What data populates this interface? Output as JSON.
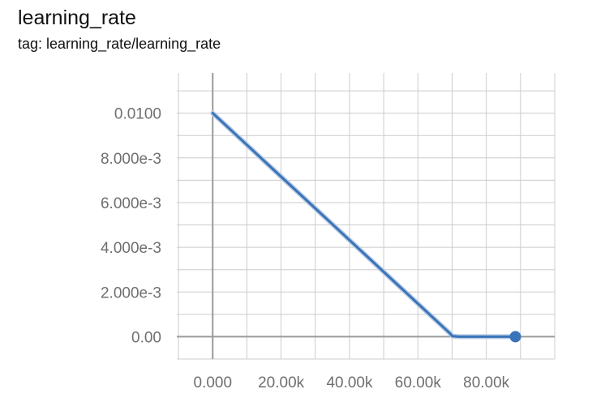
{
  "panel": {
    "title": "learning_rate",
    "tag": "tag: learning_rate/learning_rate"
  },
  "colors": {
    "series": "#3a74b8",
    "grid": "#cccccc",
    "axis": "#9a9a9a",
    "text": "#6f6f6f"
  },
  "chart_data": {
    "type": "line",
    "title": "learning_rate",
    "xlabel": "",
    "ylabel": "",
    "xlim": [
      -10500,
      100000
    ],
    "ylim": [
      -0.001,
      0.0118
    ],
    "x_ticks": [
      0,
      20000,
      40000,
      60000,
      80000
    ],
    "x_tick_labels": [
      "0.000",
      "20.00k",
      "40.00k",
      "60.00k",
      "80.00k"
    ],
    "y_ticks": [
      0,
      0.002,
      0.004,
      0.006,
      0.008,
      0.01
    ],
    "y_tick_labels": [
      "0.00",
      "2.000e-3",
      "4.000e-3",
      "6.000e-3",
      "8.000e-3",
      "0.0100"
    ],
    "grid": true,
    "series": [
      {
        "x": [
          0,
          5000,
          10000,
          15000,
          20000,
          25000,
          30000,
          35000,
          40000,
          45000,
          50000,
          55000,
          60000,
          65000,
          69500,
          70000,
          72000,
          75000,
          80000,
          85000,
          88500
        ],
        "y": [
          0.01,
          0.00929,
          0.00858,
          0.00787,
          0.00716,
          0.00645,
          0.00574,
          0.00503,
          0.00432,
          0.00361,
          0.0029,
          0.00219,
          0.00148,
          0.00077,
          0.00013,
          3e-05,
          0.0,
          0.0,
          0.0,
          0.0,
          0.0
        ]
      }
    ],
    "last_point": {
      "x": 88500,
      "y": 0.0
    }
  }
}
